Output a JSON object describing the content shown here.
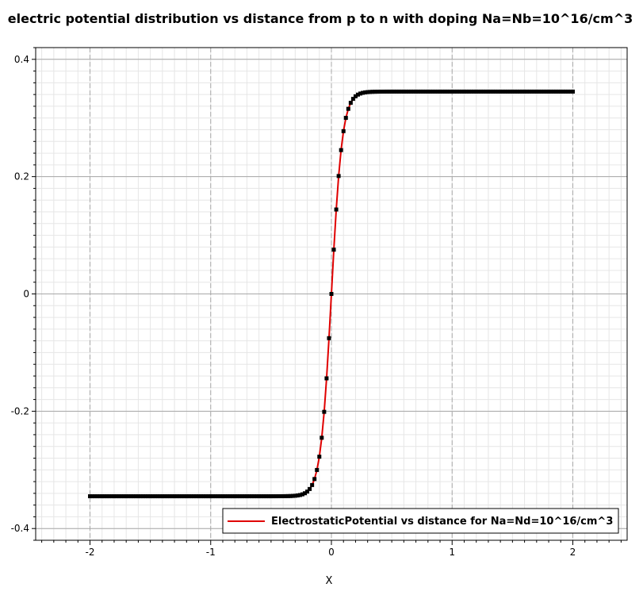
{
  "chart_data": {
    "type": "line",
    "title": "electric potential distribution vs distance from p to n with doping Na=Nb=10^16/cm^3",
    "xlabel": "X",
    "ylabel": "",
    "xlim": [
      -2.45,
      2.45
    ],
    "ylim": [
      -0.42,
      0.42
    ],
    "x_ticks": [
      -2,
      -1,
      0,
      1,
      2
    ],
    "x_tick_labels": [
      "-2",
      "-1",
      "0",
      "1",
      "2"
    ],
    "y_ticks": [
      -0.4,
      -0.2,
      0,
      0.2,
      0.4
    ],
    "y_tick_labels": [
      "-0.4",
      "-0.2",
      "0",
      "0.2",
      "0.4"
    ],
    "grid": true,
    "minor_grid": true,
    "legend_position": "bottom-right",
    "series": [
      {
        "name": "ElectrostaticPotential vs distance for Na=Nd=10^16/cm^3",
        "color": "#e00000",
        "marker_color": "#000000",
        "x_start": -2,
        "x_end": 2,
        "x_step": 0.02,
        "y_min": -0.345,
        "y_max": 0.345,
        "transition_center": 0.0,
        "transition_width": 0.09
      }
    ]
  }
}
